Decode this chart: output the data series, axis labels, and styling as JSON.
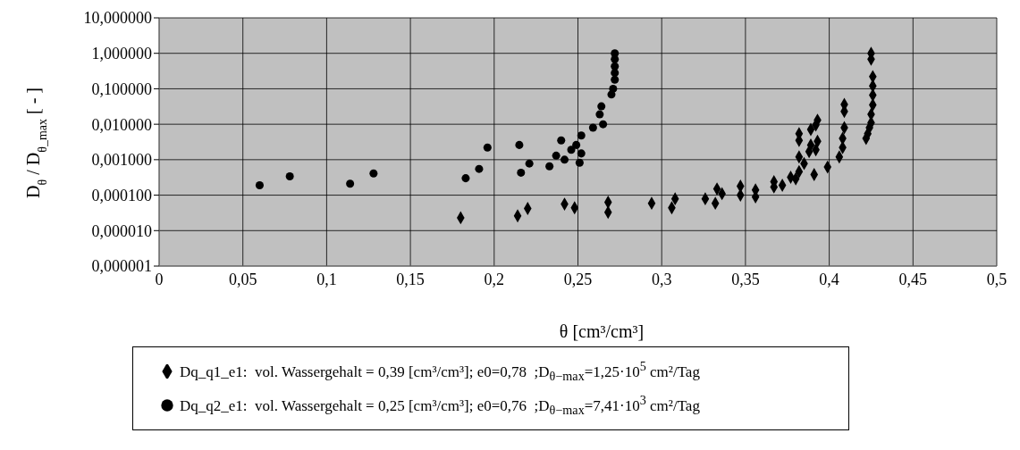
{
  "chart_data": {
    "type": "scatter",
    "xlabel": "θ [cm³/cm³]",
    "ylabel": "D$_{θ}$ / D$_{θ_max}$ [ - ]",
    "xlim": [
      0,
      0.5
    ],
    "xticks": [
      {
        "value": 0,
        "label": "0"
      },
      {
        "value": 0.05,
        "label": "0,05"
      },
      {
        "value": 0.1,
        "label": "0,1"
      },
      {
        "value": 0.15,
        "label": "0,15"
      },
      {
        "value": 0.2,
        "label": "0,2"
      },
      {
        "value": 0.25,
        "label": "0,25"
      },
      {
        "value": 0.3,
        "label": "0,3"
      },
      {
        "value": 0.35,
        "label": "0,35"
      },
      {
        "value": 0.4,
        "label": "0,4"
      },
      {
        "value": 0.45,
        "label": "0,45"
      },
      {
        "value": 0.5,
        "label": "0,5"
      }
    ],
    "ylim": [
      1e-06,
      10
    ],
    "yticks": [
      {
        "value": 1e-06,
        "label": "0,000001"
      },
      {
        "value": 1e-05,
        "label": "0,000010"
      },
      {
        "value": 0.0001,
        "label": "0,000100"
      },
      {
        "value": 0.001,
        "label": "0,001000"
      },
      {
        "value": 0.01,
        "label": "0,010000"
      },
      {
        "value": 0.1,
        "label": "0,100000"
      },
      {
        "value": 1,
        "label": "1,000000"
      },
      {
        "value": 10,
        "label": "10,000000"
      }
    ],
    "log": "y",
    "grid": true,
    "legend": "bottom",
    "series": [
      {
        "name": "Dq_q1_e1:  vol. Wassergehalt = 0,39 [cm³/cm³]; e0=0,78  ;D$_{θ−max}$=1,25·10$^{5}$ cm²/Tag",
        "color": "#000000",
        "marker": "diamond",
        "x": [
          0.18,
          0.214,
          0.22,
          0.242,
          0.248,
          0.268,
          0.268,
          0.294,
          0.306,
          0.308,
          0.326,
          0.332,
          0.333,
          0.336,
          0.347,
          0.347,
          0.356,
          0.356,
          0.367,
          0.367,
          0.372,
          0.377,
          0.38,
          0.382,
          0.382,
          0.382,
          0.382,
          0.385,
          0.388,
          0.389,
          0.392,
          0.393,
          0.389,
          0.392,
          0.393,
          0.391,
          0.399,
          0.406,
          0.408,
          0.408,
          0.409,
          0.409,
          0.409,
          0.422,
          0.423,
          0.424,
          0.425,
          0.425,
          0.426,
          0.426,
          0.426,
          0.426,
          0.425,
          0.425
        ],
        "values": [
          2.3e-05,
          2.6e-05,
          4.2e-05,
          5.6e-05,
          4.4e-05,
          6.3e-05,
          3.3e-05,
          5.9e-05,
          4.4e-05,
          7.9e-05,
          7.9e-05,
          5.9e-05,
          0.00015,
          0.00011,
          0.00018,
          0.0001,
          0.00014,
          8.9e-05,
          0.00024,
          0.00017,
          0.00019,
          0.00032,
          0.00029,
          0.00046,
          0.0012,
          0.0035,
          0.0054,
          0.00078,
          0.0017,
          0.0026,
          0.0019,
          0.0033,
          0.0071,
          0.0095,
          0.013,
          0.00038,
          0.00062,
          0.0012,
          0.0022,
          0.004,
          0.008,
          0.023,
          0.036,
          0.004,
          0.0054,
          0.008,
          0.011,
          0.019,
          0.035,
          0.066,
          0.12,
          0.22,
          0.68,
          1.0
        ]
      },
      {
        "name": "Dq_q2_e1:  vol. Wassergehalt = 0,25 [cm³/cm³]; e0=0,76  ;D$_{θ−max}$=7,41·10$^{3}$ cm²/Tag",
        "color": "#000000",
        "marker": "circle",
        "x": [
          0.06,
          0.078,
          0.114,
          0.128,
          0.183,
          0.191,
          0.196,
          0.215,
          0.216,
          0.221,
          0.233,
          0.237,
          0.24,
          0.242,
          0.246,
          0.249,
          0.251,
          0.252,
          0.252,
          0.259,
          0.265,
          0.263,
          0.264,
          0.27,
          0.271,
          0.272,
          0.272,
          0.272,
          0.272,
          0.272
        ],
        "values": [
          0.00019,
          0.00034,
          0.00021,
          0.00041,
          0.0003,
          0.00055,
          0.0022,
          0.0026,
          0.00043,
          0.00078,
          0.00065,
          0.0013,
          0.0035,
          0.001,
          0.0019,
          0.0026,
          0.00082,
          0.0015,
          0.0048,
          0.008,
          0.01,
          0.019,
          0.032,
          0.069,
          0.1,
          0.18,
          0.28,
          0.43,
          0.68,
          1.0
        ]
      }
    ]
  }
}
